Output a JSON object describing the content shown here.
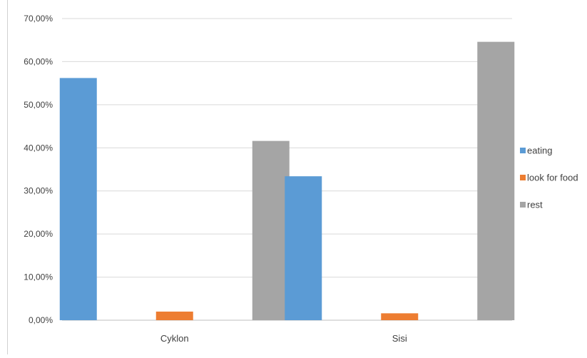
{
  "chart_data": {
    "type": "bar",
    "title": "",
    "xlabel": "",
    "ylabel": "",
    "categories": [
      "Cyklon",
      "Sisi"
    ],
    "series": [
      {
        "name": "eating",
        "values": [
          56.2,
          33.4
        ],
        "color": "#5B9BD5"
      },
      {
        "name": "look for food",
        "values": [
          2.0,
          1.6
        ],
        "color": "#ED7D31"
      },
      {
        "name": "rest",
        "values": [
          41.6,
          64.6
        ],
        "color": "#A5A5A5"
      }
    ],
    "ylim": [
      0,
      70
    ],
    "yticks": [
      0,
      10,
      20,
      30,
      40,
      50,
      60,
      70
    ],
    "ytick_labels": [
      "0,00%",
      "10,00%",
      "20,00%",
      "30,00%",
      "40,00%",
      "50,00%",
      "60,00%",
      "70,00%"
    ],
    "grid": true,
    "legend_position": "right"
  }
}
